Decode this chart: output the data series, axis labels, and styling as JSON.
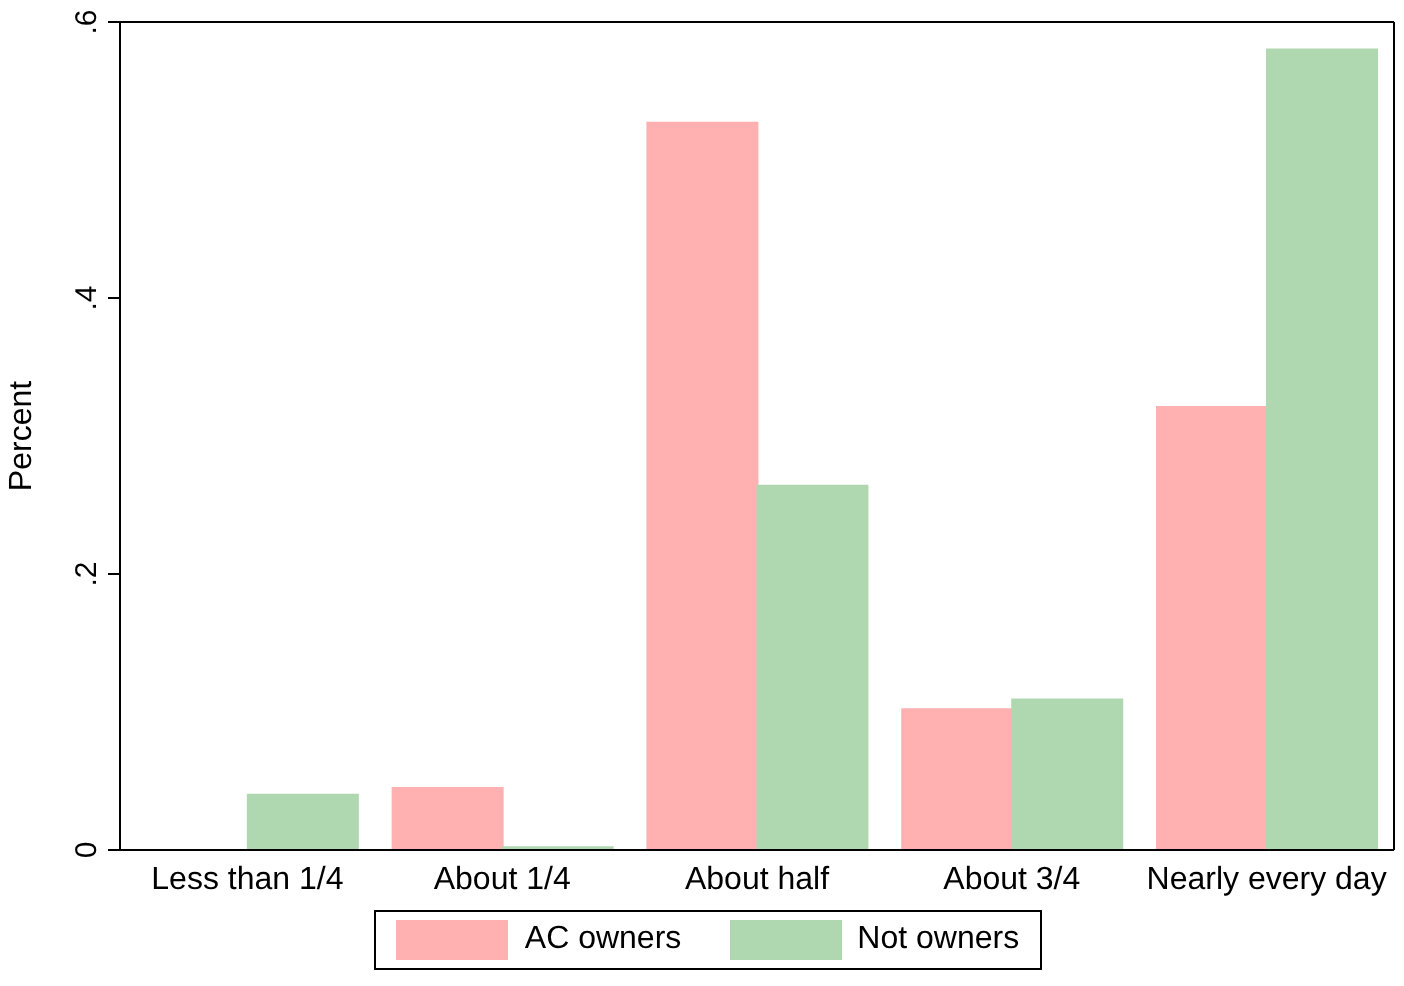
{
  "chart_data": {
    "type": "bar",
    "ylabel": "Percent",
    "categories": [
      "Less than 1/4",
      "About 1/4",
      "About half",
      "About 3/4",
      "Nearly every day"
    ],
    "series": [
      {
        "name": "AC owners",
        "color": "#ffb0b0",
        "values": [
          0,
          0.045,
          0.527,
          0.102,
          0.321
        ]
      },
      {
        "name": "Not owners",
        "color": "#b0d8b0",
        "values": [
          0.04,
          0.002,
          0.264,
          0.109,
          0.58
        ]
      }
    ],
    "ylim": [
      0,
      0.6
    ],
    "yticks": [
      {
        "value": 0,
        "label": "0"
      },
      {
        "value": 0.2,
        "label": ".2"
      },
      {
        "value": 0.4,
        "label": ".4"
      },
      {
        "value": 0.6,
        "label": ".6"
      }
    ],
    "grid": false,
    "legend": "bottom"
  }
}
